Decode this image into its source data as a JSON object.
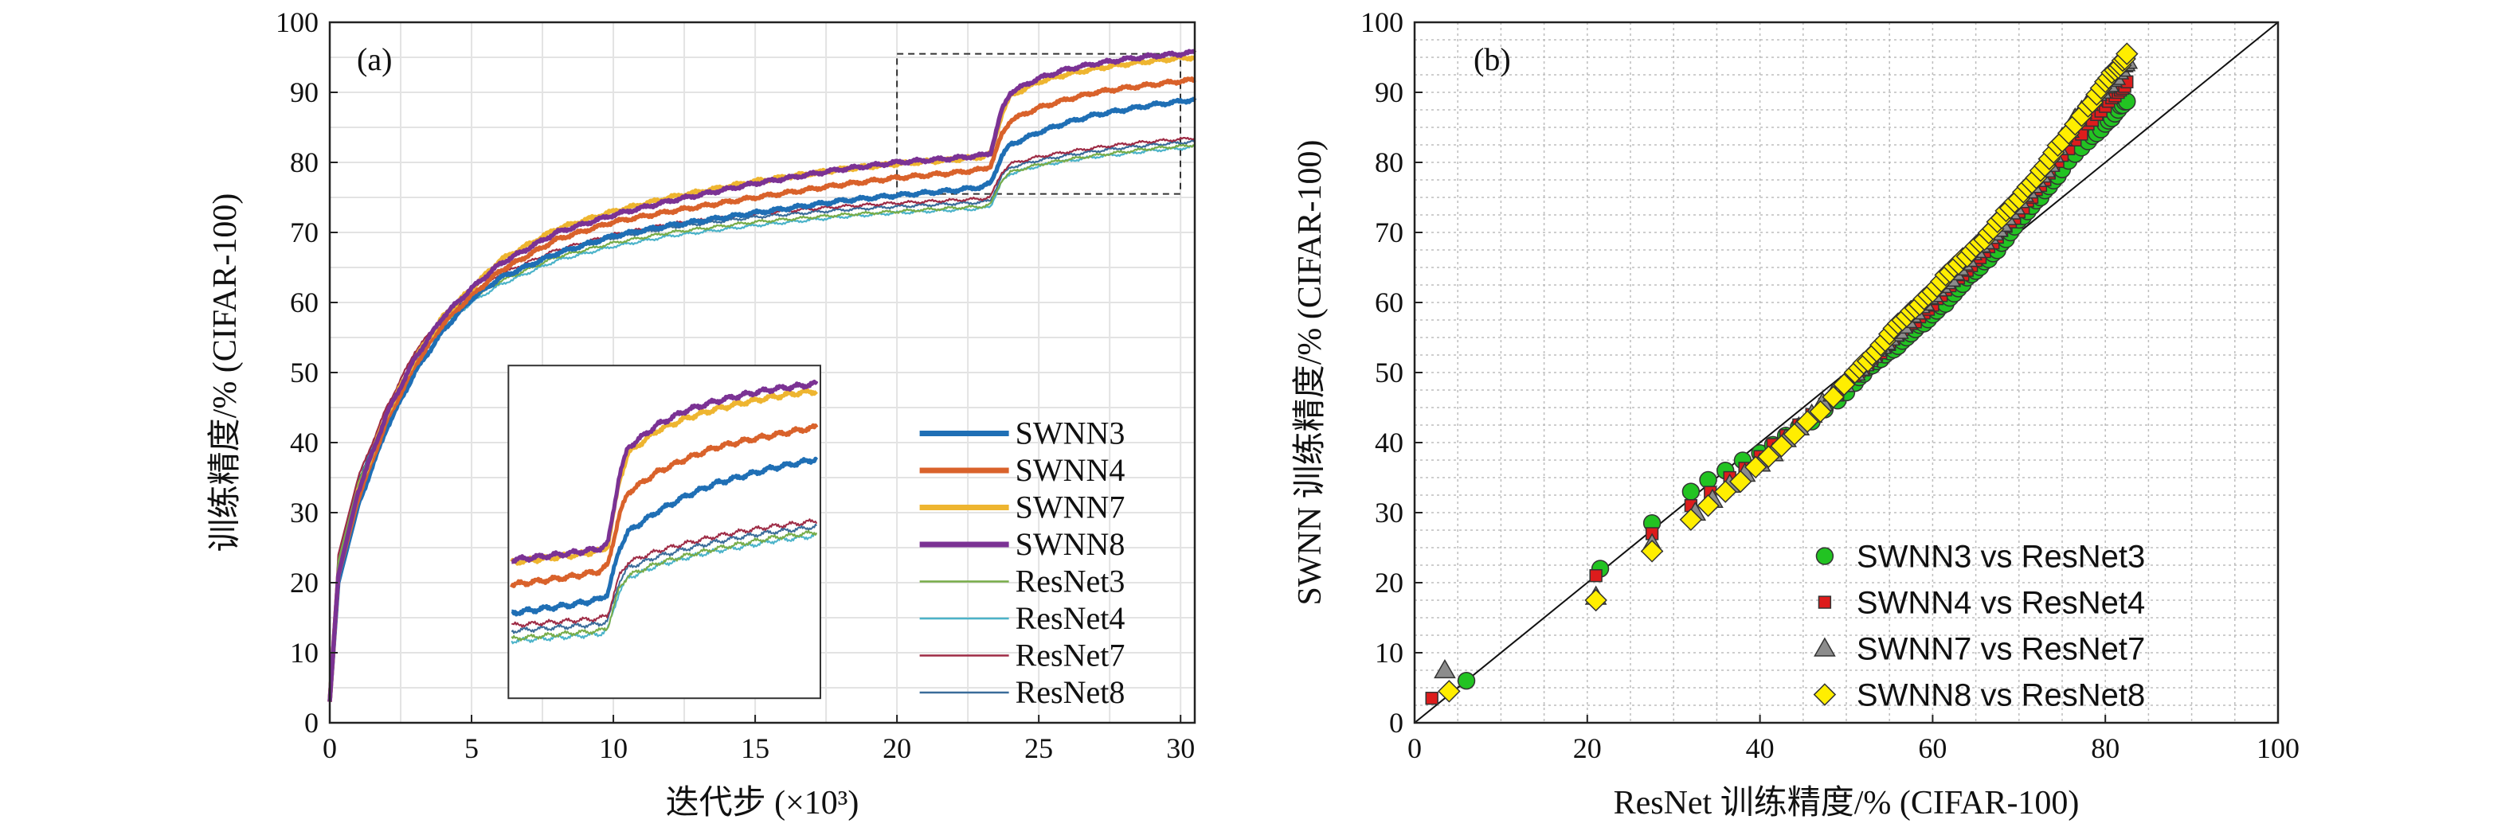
{
  "chart_data": [
    {
      "type": "line",
      "panel_label": "(a)",
      "xlabel": "迭代步 (×10³)",
      "ylabel": "训练精度/% (CIFAR-100)",
      "xlim": [
        0,
        30.5
      ],
      "ylim": [
        0,
        100
      ],
      "xticks": [
        "0",
        "5",
        "10",
        "15",
        "20",
        "25",
        "30"
      ],
      "yticks": [
        "0",
        "10",
        "20",
        "30",
        "40",
        "50",
        "60",
        "70",
        "80",
        "90",
        "100"
      ],
      "grid": true,
      "legend_position": "bottom-right",
      "zoom_box": {
        "x": [
          20,
          30.5
        ],
        "y": [
          75.5,
          95.5
        ]
      },
      "inset": {
        "x": [
          6.3,
          17.3
        ],
        "y": [
          3.5,
          51
        ],
        "shows_region": "zoom_box"
      },
      "series": [
        {
          "name": "SWNN3",
          "color": "#1f6fb5",
          "style": "thick",
          "x": [
            0,
            0.3,
            1,
            2,
            3,
            4,
            5,
            6,
            8,
            10,
            12,
            15,
            18,
            20,
            22,
            23,
            23.3,
            23.7,
            24,
            25,
            26,
            27,
            28,
            29,
            30,
            30.5
          ],
          "y": [
            3,
            20,
            31,
            42,
            50,
            56,
            60.5,
            63.5,
            67,
            69.5,
            71,
            72.8,
            74.5,
            75.3,
            76,
            76.5,
            77,
            81,
            82.5,
            84.3,
            85.7,
            86.8,
            87.5,
            88.2,
            88.7,
            89
          ]
        },
        {
          "name": "SWNN4",
          "color": "#d9622b",
          "style": "thick",
          "x": [
            0,
            0.3,
            1,
            2,
            3,
            4,
            5,
            6,
            8,
            10,
            12,
            15,
            18,
            20,
            22,
            23,
            23.3,
            23.7,
            24,
            25,
            26,
            27,
            28,
            29,
            30,
            30.5
          ],
          "y": [
            3,
            21,
            32,
            43,
            51,
            57,
            61,
            64.5,
            69,
            71.5,
            73,
            75,
            76.8,
            77.8,
            78.5,
            79,
            79.5,
            84,
            86,
            87.8,
            89,
            90,
            90.6,
            91.1,
            91.6,
            91.8
          ]
        },
        {
          "name": "SWNN7",
          "color": "#eeb530",
          "style": "thick",
          "x": [
            0,
            0.3,
            1,
            2,
            3,
            4,
            5,
            6,
            8,
            10,
            12,
            15,
            18,
            20,
            22,
            23,
            23.3,
            23.7,
            24,
            25,
            26,
            27,
            28,
            29,
            30,
            30.5
          ],
          "y": [
            3,
            21,
            33,
            44,
            52,
            58,
            62,
            66,
            70.5,
            73,
            75,
            77.3,
            79,
            79.8,
            80.4,
            80.8,
            81.2,
            87,
            89.5,
            91.5,
            92.6,
            93.4,
            94,
            94.5,
            94.9,
            95
          ]
        },
        {
          "name": "SWNN8",
          "color": "#7b3294",
          "style": "thick",
          "x": [
            0,
            0.3,
            1,
            2,
            3,
            4,
            5,
            6,
            8,
            10,
            12,
            15,
            18,
            20,
            22,
            23,
            23.3,
            23.7,
            24,
            25,
            26,
            27,
            28,
            29,
            30,
            30.5
          ],
          "y": [
            3,
            21,
            33,
            44,
            52,
            58,
            62,
            65.5,
            70,
            72.5,
            74.5,
            77,
            79,
            80,
            80.6,
            81,
            81.4,
            87.5,
            90,
            92,
            93.3,
            94.1,
            94.7,
            95.2,
            95.5,
            95.7
          ]
        },
        {
          "name": "ResNet3",
          "color": "#77ac48",
          "style": "thin",
          "x": [
            0,
            0.3,
            1,
            2,
            3,
            4,
            5,
            6,
            8,
            10,
            12,
            15,
            18,
            20,
            22,
            23,
            23.3,
            23.7,
            24,
            25,
            26,
            27,
            28,
            29,
            30,
            30.5
          ],
          "y": [
            3,
            23,
            34,
            44,
            52,
            57,
            60.5,
            63,
            66.5,
            68.5,
            70,
            71.5,
            72.5,
            73,
            73.5,
            73.7,
            74,
            77.5,
            78.6,
            79.7,
            80.4,
            81,
            81.5,
            82,
            82.3,
            82.5
          ]
        },
        {
          "name": "ResNet4",
          "color": "#4bb3c9",
          "style": "thin",
          "x": [
            0,
            0.3,
            1,
            2,
            3,
            4,
            5,
            6,
            8,
            10,
            12,
            15,
            18,
            20,
            22,
            23,
            23.3,
            23.7,
            24,
            25,
            26,
            27,
            28,
            29,
            30,
            30.5
          ],
          "y": [
            3,
            23,
            34,
            44,
            51.5,
            56.5,
            60,
            62.5,
            66,
            68,
            69.5,
            71,
            72.2,
            72.8,
            73.2,
            73.4,
            73.8,
            77.2,
            78.4,
            79.5,
            80.2,
            80.8,
            81.2,
            81.7,
            82,
            82.2
          ]
        },
        {
          "name": "ResNet7",
          "color": "#9e2b45",
          "style": "thin",
          "x": [
            0,
            0.3,
            1,
            2,
            3,
            4,
            5,
            6,
            8,
            10,
            12,
            15,
            18,
            20,
            22,
            23,
            23.3,
            23.7,
            24,
            25,
            26,
            27,
            28,
            29,
            30,
            30.5
          ],
          "y": [
            3,
            24,
            35,
            45,
            53,
            58,
            61.5,
            64,
            67.5,
            69.7,
            71.2,
            72.7,
            73.7,
            74.2,
            74.6,
            74.8,
            75.1,
            78.6,
            79.8,
            80.8,
            81.5,
            82.1,
            82.6,
            83,
            83.3,
            83.5
          ]
        },
        {
          "name": "ResNet8",
          "color": "#3a6c9a",
          "style": "thin",
          "x": [
            0,
            0.3,
            1,
            2,
            3,
            4,
            5,
            6,
            8,
            10,
            12,
            15,
            18,
            20,
            22,
            23,
            23.3,
            23.7,
            24,
            25,
            26,
            27,
            28,
            29,
            30,
            30.5
          ],
          "y": [
            3,
            23.5,
            34.5,
            44.5,
            52.5,
            57.5,
            61,
            63.5,
            67,
            69.2,
            70.7,
            72.2,
            73.2,
            73.7,
            74.1,
            74.3,
            74.6,
            78.1,
            79.3,
            80.3,
            81,
            81.6,
            82.1,
            82.5,
            82.8,
            83
          ]
        }
      ]
    },
    {
      "type": "scatter",
      "panel_label": "(b)",
      "xlabel": "ResNet 训练精度/% (CIFAR-100)",
      "ylabel": "SWNN 训练精度/% (CIFAR-100)",
      "xlim": [
        0,
        100
      ],
      "ylim": [
        0,
        100
      ],
      "xticks": [
        "0",
        "20",
        "40",
        "60",
        "80",
        "100"
      ],
      "yticks": [
        "0",
        "10",
        "20",
        "30",
        "40",
        "50",
        "60",
        "70",
        "80",
        "90",
        "100"
      ],
      "grid": true,
      "reference_line": "y = x",
      "legend_position": "bottom-right",
      "series": [
        {
          "name": "SWNN3 vs ResNet3",
          "marker": "circle",
          "color": "#22c322",
          "x": [
            6,
            21.5,
            27.5,
            32,
            36,
            40,
            43,
            46,
            49,
            51,
            53,
            55,
            57,
            59,
            61,
            63,
            65,
            67,
            69,
            71,
            73,
            75,
            78,
            80,
            81.5,
            82.5
          ],
          "y": [
            6,
            22,
            28.5,
            33,
            36,
            38.5,
            41,
            43,
            46,
            48.5,
            51,
            53,
            55,
            57,
            59.5,
            62,
            64.5,
            67,
            70,
            73,
            76,
            79,
            83,
            85.5,
            87.5,
            88.7
          ]
        },
        {
          "name": "SWNN4 vs ResNet4",
          "marker": "square",
          "color": "#dd1c1c",
          "x": [
            2,
            21,
            27.5,
            32,
            36.5,
            40,
            43,
            46,
            49,
            51,
            53,
            55,
            57,
            59,
            61,
            63,
            65,
            67,
            69,
            71,
            73,
            75,
            78,
            80,
            81.5,
            82.5
          ],
          "y": [
            3.5,
            21,
            27,
            31,
            35,
            38,
            41,
            44,
            47,
            49.5,
            52,
            54,
            56.5,
            58.5,
            61,
            63.5,
            66,
            68.5,
            71.5,
            74.5,
            77.5,
            81,
            85.5,
            88,
            90,
            91.5
          ]
        },
        {
          "name": "SWNN7 vs ResNet7",
          "marker": "triangle",
          "color": "#8c8c8c",
          "x": [
            3.5,
            21,
            27.5,
            32.5,
            36.5,
            40,
            43,
            46,
            48.5,
            51,
            53,
            55,
            57,
            59,
            61,
            63,
            65,
            67,
            69,
            71,
            73,
            75,
            78,
            80,
            81.5,
            82.5
          ],
          "y": [
            7.5,
            18,
            25.5,
            30,
            34,
            37,
            40.5,
            44,
            47,
            50,
            52.5,
            55,
            57.5,
            60,
            62.5,
            65,
            67.5,
            70,
            73,
            76,
            79,
            83.5,
            88.5,
            91,
            93,
            94.5
          ]
        },
        {
          "name": "SWNN8 vs ResNet8",
          "marker": "diamond",
          "color": "#ffee00",
          "x": [
            4,
            21,
            27.5,
            32,
            36,
            39.5,
            42.5,
            45.5,
            48.5,
            51,
            53,
            55,
            57,
            59,
            61,
            63,
            65,
            67,
            69,
            71,
            73,
            75,
            78,
            80,
            81.5,
            82.5
          ],
          "y": [
            4.5,
            17.5,
            24.5,
            29,
            33,
            36.5,
            39.5,
            43,
            46.5,
            50,
            52.5,
            55.5,
            58,
            60.5,
            63,
            65.5,
            68,
            70.5,
            73.5,
            76.5,
            79.5,
            83,
            88,
            91.5,
            93.5,
            95.5
          ]
        }
      ]
    }
  ]
}
